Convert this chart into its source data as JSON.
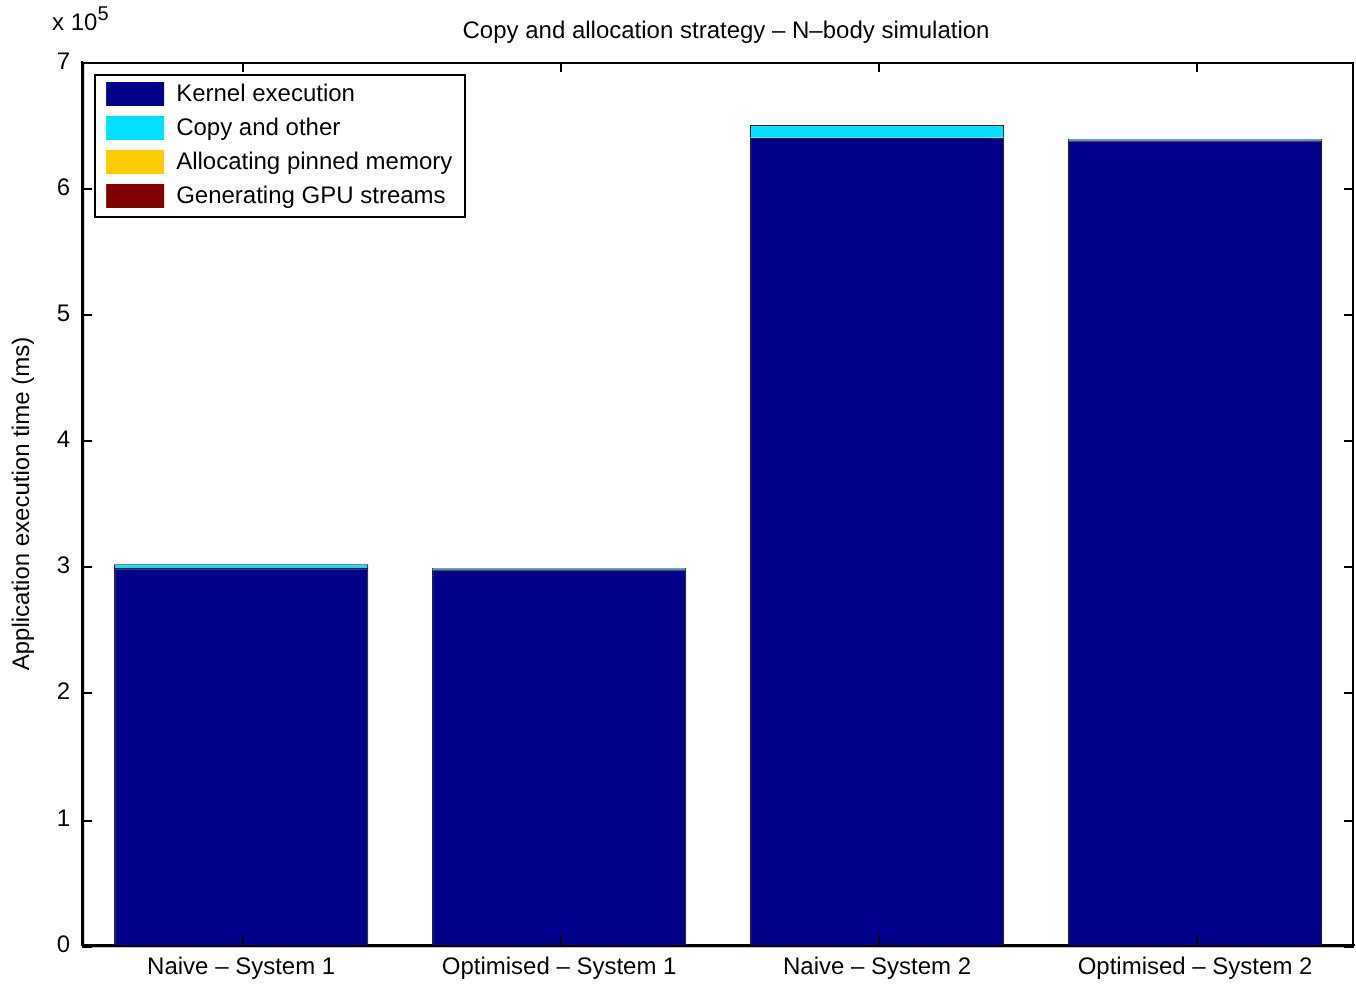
{
  "chart_data": {
    "type": "bar",
    "title": "Copy and allocation strategy – N–body simulation",
    "ylabel": "Application execution time (ms)",
    "categories": [
      "Naive – System 1",
      "Optimised – System 1",
      "Naive – System 2",
      "Optimised – System 2"
    ],
    "stacked": true,
    "series": [
      {
        "name": "Kernel execution",
        "color": "#00008b",
        "values": [
          2.99,
          2.98,
          6.4,
          6.38
        ]
      },
      {
        "name": "Copy and other",
        "color": "#00e0ff",
        "values": [
          0.03,
          0.01,
          0.1,
          0.01
        ]
      },
      {
        "name": "Allocating pinned memory",
        "color": "#ffcc00",
        "values": [
          0,
          0,
          0,
          0
        ]
      },
      {
        "name": "Generating GPU streams",
        "color": "#800000",
        "values": [
          0,
          0,
          0,
          0
        ]
      }
    ],
    "ylim": [
      0,
      7
    ],
    "yticks": [
      0,
      1,
      2,
      3,
      4,
      5,
      6,
      7
    ],
    "annotations": [
      "x 10$^{5}$"
    ],
    "legend": "top left",
    "grid": false
  }
}
